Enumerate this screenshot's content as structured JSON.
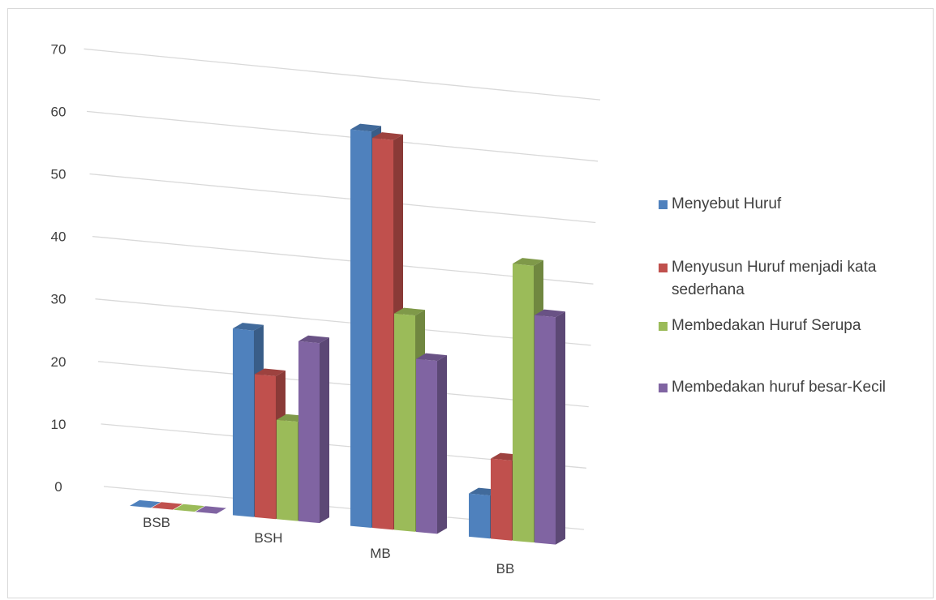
{
  "chart_data": {
    "type": "bar",
    "categories": [
      "BSB",
      "BSH",
      "MB",
      "BB"
    ],
    "series": [
      {
        "name": "Menyebut Huruf",
        "values": [
          0,
          30,
          64,
          7
        ],
        "color": "#4f81bd"
      },
      {
        "name": "Menyusun Huruf menjadi kata sederhana",
        "values": [
          0,
          23,
          63,
          13
        ],
        "color": "#c0504d"
      },
      {
        "name": "Membedakan Huruf Serupa",
        "values": [
          0,
          16,
          35,
          45
        ],
        "color": "#9bbb59"
      },
      {
        "name": "Membedakan huruf besar-Kecil",
        "values": [
          0,
          29,
          28,
          37
        ],
        "color": "#8064a2"
      }
    ],
    "yticks": [
      "0",
      "10",
      "20",
      "30",
      "40",
      "50",
      "60",
      "70"
    ],
    "ylim": [
      0,
      70
    ],
    "grid": true,
    "legend_position": "right",
    "style": "3d-clustered-column"
  }
}
